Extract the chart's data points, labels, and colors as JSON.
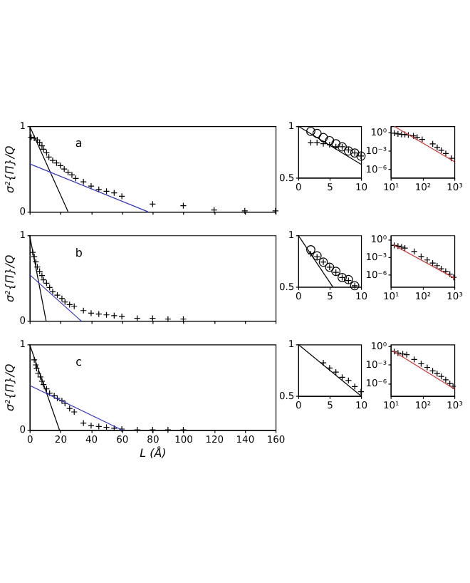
{
  "chart_data": [
    {
      "type": "scatter",
      "ylabel": "σ²{Π}/Q",
      "xlim": [
        0,
        160
      ],
      "xticks": [
        0,
        20,
        40,
        60,
        80,
        100,
        120,
        140,
        160
      ],
      "ylim": [
        0,
        1
      ],
      "yticks": [
        0,
        1
      ],
      "tick_labels": "y",
      "annotations": [
        "a"
      ],
      "series": [
        {
          "marker": "cross",
          "color": "#000000",
          "x": [
            1,
            3,
            5,
            6.5,
            8,
            9,
            11,
            12.5,
            15,
            17.5,
            20,
            22.5,
            25,
            27.5,
            30,
            35,
            40,
            45,
            50,
            55,
            60,
            80,
            100,
            120,
            140,
            160
          ],
          "values": [
            0.87,
            0.86,
            0.84,
            0.81,
            0.77,
            0.73,
            0.69,
            0.64,
            0.6,
            0.57,
            0.54,
            0.5,
            0.46,
            0.43,
            0.39,
            0.35,
            0.3,
            0.26,
            0.24,
            0.22,
            0.18,
            0.09,
            0.07,
            0.02,
            0.01,
            0.01
          ]
        },
        {
          "type": "line",
          "color": "#000000",
          "x": [
            0,
            25
          ],
          "values": [
            1,
            0
          ]
        },
        {
          "type": "line",
          "color": "#3030e0",
          "x": [
            0,
            77
          ],
          "values": [
            0.56,
            0
          ]
        }
      ]
    },
    {
      "type": "scatter",
      "xlim": [
        0,
        10
      ],
      "xticks": [
        0,
        5,
        10
      ],
      "ylim": [
        0.5,
        1
      ],
      "yticks": [
        0.5,
        1
      ],
      "series": [
        {
          "marker": "circle",
          "color": "#000000",
          "x": [
            2,
            3,
            4,
            5,
            6,
            7,
            8,
            9,
            10
          ],
          "values": [
            0.95,
            0.93,
            0.89,
            0.86,
            0.83,
            0.8,
            0.76,
            0.74,
            0.71
          ]
        },
        {
          "marker": "cross",
          "color": "#000000",
          "x": [
            2,
            3,
            4,
            5,
            6,
            7,
            8,
            9,
            10
          ],
          "values": [
            0.84,
            0.84,
            0.83,
            0.82,
            0.8,
            0.8,
            0.77,
            0.74,
            0.71
          ]
        },
        {
          "type": "line",
          "color": "#000000",
          "x": [
            0,
            10
          ],
          "values": [
            1,
            0.63
          ]
        }
      ]
    },
    {
      "type": "scatter",
      "log": "xy",
      "xlim": [
        10,
        1000
      ],
      "xticks": [
        {
          "value": 10,
          "label": "10¹"
        },
        {
          "value": 100,
          "label": "10²"
        },
        {
          "value": 1000,
          "label": "10³"
        }
      ],
      "ylim": [
        4e-08,
        10
      ],
      "yticks": [
        {
          "value": 1,
          "label": "10⁰"
        },
        {
          "value": 0.001,
          "label": "10⁻³"
        },
        {
          "value": 1e-06,
          "label": "10⁻⁶"
        }
      ],
      "series": [
        {
          "marker": "cross",
          "color": "#000000",
          "x": [
            13,
            17,
            22,
            28,
            36,
            52,
            68,
            98,
            210,
            290,
            390,
            540,
            810
          ],
          "values": [
            0.74,
            0.55,
            0.45,
            0.45,
            0.36,
            0.27,
            0.16,
            0.072,
            0.013,
            0.0034,
            0.0012,
            0.00036,
            5.8e-05
          ]
        },
        {
          "type": "line",
          "color": "#e03030",
          "x": [
            13,
            1000
          ],
          "values": [
            9.5,
            1.7e-05
          ]
        }
      ]
    },
    {
      "type": "scatter",
      "ylabel": "σ²{Π}/Q",
      "xlim": [
        0,
        160
      ],
      "xticks": [
        0,
        20,
        40,
        60,
        80,
        100,
        120,
        140,
        160
      ],
      "ylim": [
        0,
        1
      ],
      "yticks": [
        0,
        1
      ],
      "tick_labels": "y",
      "annotations": [
        "b"
      ],
      "series": [
        {
          "marker": "cross",
          "color": "#000000",
          "x": [
            2,
            3,
            4,
            5,
            6.5,
            8,
            9,
            11,
            13,
            15,
            18,
            21,
            23,
            26,
            29,
            35,
            40,
            45,
            50,
            55,
            60,
            70,
            80,
            90,
            100
          ],
          "values": [
            0.8,
            0.75,
            0.69,
            0.63,
            0.58,
            0.53,
            0.48,
            0.44,
            0.39,
            0.34,
            0.3,
            0.26,
            0.22,
            0.19,
            0.17,
            0.12,
            0.09,
            0.08,
            0.07,
            0.06,
            0.05,
            0.03,
            0.03,
            0.02,
            0.02
          ]
        },
        {
          "type": "line",
          "color": "#000000",
          "x": [
            0,
            10.7
          ],
          "values": [
            1,
            0
          ]
        },
        {
          "type": "line",
          "color": "#3030e0",
          "x": [
            0,
            33.4
          ],
          "values": [
            0.54,
            0
          ]
        }
      ]
    },
    {
      "type": "scatter",
      "xlim": [
        0,
        10
      ],
      "xticks": [
        0,
        5,
        10
      ],
      "ylim": [
        0.5,
        1
      ],
      "yticks": [
        0.5,
        1
      ],
      "series": [
        {
          "marker": "circle",
          "color": "#000000",
          "x": [
            2,
            3,
            4,
            5,
            6,
            7,
            8,
            9
          ],
          "values": [
            0.86,
            0.8,
            0.74,
            0.69,
            0.65,
            0.59,
            0.57,
            0.51
          ]
        },
        {
          "marker": "cross",
          "color": "#000000",
          "x": [
            2,
            3,
            4,
            5,
            6,
            7,
            8,
            9
          ],
          "values": [
            0.82,
            0.79,
            0.74,
            0.69,
            0.64,
            0.59,
            0.56,
            0.51
          ]
        },
        {
          "type": "line",
          "color": "#000000",
          "x": [
            0,
            5.5
          ],
          "values": [
            1,
            0.5
          ]
        }
      ]
    },
    {
      "type": "scatter",
      "log": "xy",
      "xlim": [
        10,
        1000
      ],
      "xticks": [
        {
          "value": 10,
          "label": "10¹"
        },
        {
          "value": 100,
          "label": "10²"
        },
        {
          "value": 1000,
          "label": "10³"
        }
      ],
      "ylim": [
        1e-08,
        5
      ],
      "yticks": [
        {
          "value": 1,
          "label": "10⁰"
        },
        {
          "value": 0.001,
          "label": "10⁻³"
        },
        {
          "value": 1e-06,
          "label": "10⁻⁶"
        }
      ],
      "series": [
        {
          "marker": "cross",
          "color": "#000000",
          "x": [
            13,
            17,
            22,
            28,
            55,
            91,
            141,
            209,
            288,
            389,
            537,
            724,
            955
          ],
          "values": [
            0.098,
            0.072,
            0.052,
            0.035,
            0.0093,
            0.0013,
            0.00034,
            0.0001,
            3.7e-05,
            1.1e-05,
            4.1e-06,
            1.4e-06,
            3.9e-07
          ]
        },
        {
          "type": "line",
          "color": "#e03030",
          "x": [
            11.5,
            1000
          ],
          "values": [
            0.145,
            3e-07
          ]
        }
      ]
    },
    {
      "type": "scatter",
      "xlabel": "L (Å)",
      "ylabel": "σ²{Π}/Q",
      "xlim": [
        0,
        160
      ],
      "xticks": [
        0,
        20,
        40,
        60,
        80,
        100,
        120,
        140,
        160
      ],
      "ylim": [
        0,
        1
      ],
      "yticks": [
        0,
        1
      ],
      "annotations": [
        "c"
      ],
      "series": [
        {
          "marker": "cross",
          "color": "#000000",
          "x": [
            3,
            4,
            4.5,
            5.5,
            7,
            8,
            9,
            11,
            13,
            16,
            18,
            21,
            23,
            26,
            29,
            35,
            40,
            45,
            50,
            55,
            60,
            70,
            80,
            90,
            100
          ],
          "values": [
            0.82,
            0.76,
            0.72,
            0.66,
            0.62,
            0.57,
            0.53,
            0.48,
            0.43,
            0.4,
            0.37,
            0.34,
            0.31,
            0.25,
            0.21,
            0.08,
            0.05,
            0.04,
            0.03,
            0.02,
            0.01,
            0,
            0,
            0,
            0
          ]
        },
        {
          "type": "line",
          "color": "#000000",
          "x": [
            0,
            19.4
          ],
          "values": [
            1,
            0
          ]
        },
        {
          "type": "line",
          "color": "#3030e0",
          "x": [
            0,
            60
          ],
          "values": [
            0.52,
            0
          ]
        }
      ]
    },
    {
      "type": "scatter",
      "xlim": [
        0,
        10
      ],
      "xticks": [
        0,
        5,
        10
      ],
      "ylim": [
        0.5,
        1
      ],
      "yticks": [
        0.5,
        1
      ],
      "series": [
        {
          "marker": "cross",
          "color": "#000000",
          "x": [
            4,
            5,
            6,
            7,
            8,
            9,
            10
          ],
          "values": [
            0.82,
            0.77,
            0.73,
            0.68,
            0.65,
            0.59,
            0.54
          ]
        },
        {
          "type": "line",
          "color": "#000000",
          "x": [
            0,
            10
          ],
          "values": [
            1,
            0.5
          ]
        }
      ]
    },
    {
      "type": "scatter",
      "log": "xy",
      "xlim": [
        10,
        1000
      ],
      "xticks": [
        {
          "value": 10,
          "label": "10¹"
        },
        {
          "value": 100,
          "label": "10²"
        },
        {
          "value": 1000,
          "label": "10³"
        }
      ],
      "ylim": [
        1e-08,
        2
      ],
      "yticks": [
        {
          "value": 1,
          "label": "10⁰"
        },
        {
          "value": 0.001,
          "label": "10⁻³"
        },
        {
          "value": 1e-06,
          "label": "10⁻⁶"
        }
      ],
      "series": [
        {
          "marker": "cross",
          "color": "#000000",
          "x": [
            13,
            17,
            24,
            32,
            55,
            91,
            141,
            209,
            288,
            389,
            537,
            724,
            912
          ],
          "values": [
            0.14,
            0.081,
            0.059,
            0.044,
            0.0074,
            0.0015,
            0.00039,
            0.00011,
            3.9e-05,
            1.4e-05,
            4e-06,
            1e-06,
            3.5e-07
          ]
        },
        {
          "type": "line",
          "color": "#e03030",
          "x": [
            11.5,
            1000
          ],
          "values": [
            0.2,
            1.3e-07
          ]
        }
      ]
    }
  ]
}
